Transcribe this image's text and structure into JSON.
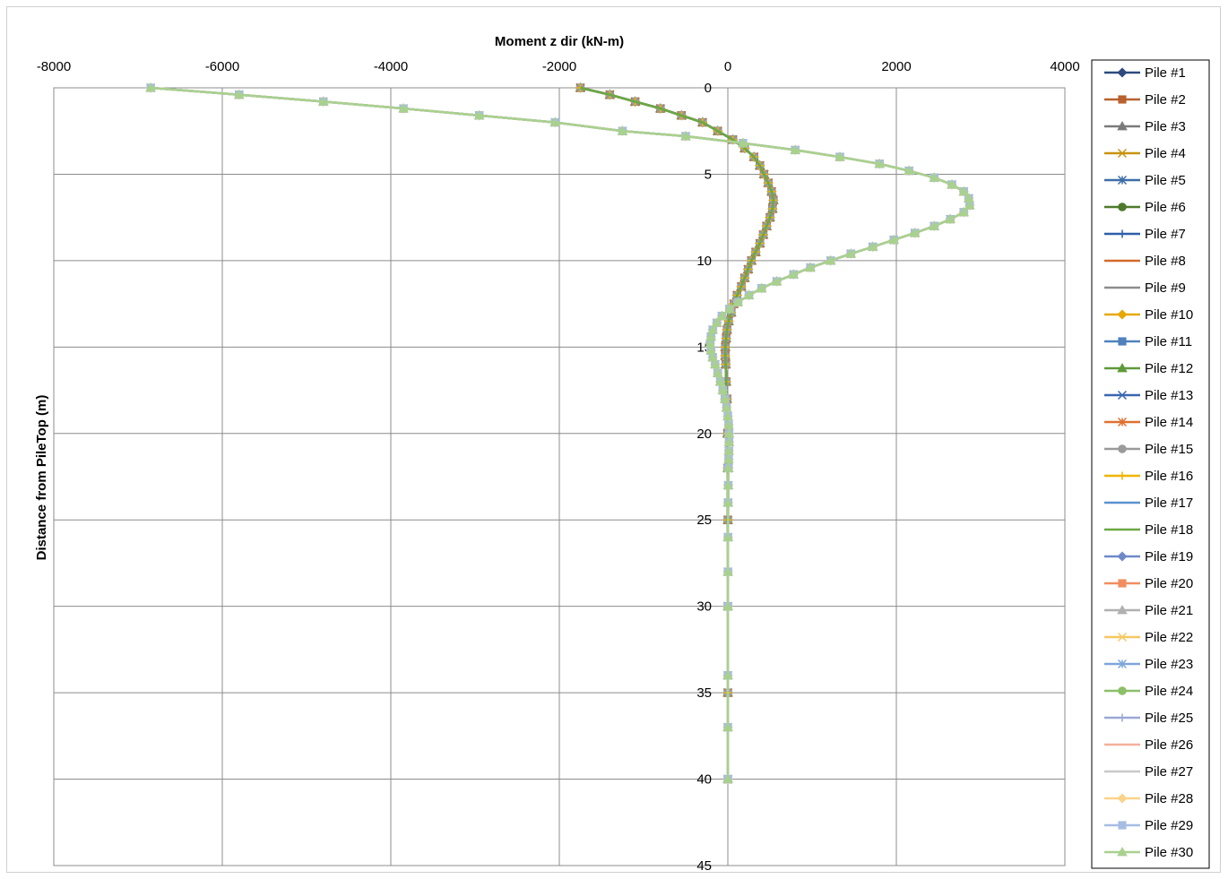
{
  "chart_data": {
    "type": "line",
    "title": "",
    "xlabel": "Moment z dir (kN-m)",
    "ylabel": "Distance from PileTop (m)",
    "xlim": [
      -8000,
      4000
    ],
    "ylim": [
      0,
      45
    ],
    "y_reversed": true,
    "x_ticks": [
      "-8000",
      "-6000",
      "-4000",
      "-2000",
      "0",
      "2000",
      "4000"
    ],
    "y_ticks": [
      "0",
      "5",
      "10",
      "15",
      "20",
      "25",
      "30",
      "35",
      "40",
      "45"
    ],
    "grid": true,
    "legend_position": "right",
    "profiles": {
      "A": [
        [
          -1750,
          0
        ],
        [
          -1400,
          0.4
        ],
        [
          -1100,
          0.8
        ],
        [
          -800,
          1.2
        ],
        [
          -550,
          1.6
        ],
        [
          -300,
          2.0
        ],
        [
          -120,
          2.5
        ],
        [
          60,
          3.0
        ],
        [
          200,
          3.5
        ],
        [
          310,
          4.0
        ],
        [
          380,
          4.5
        ],
        [
          430,
          5.0
        ],
        [
          480,
          5.5
        ],
        [
          520,
          6.0
        ],
        [
          540,
          6.5
        ],
        [
          530,
          7.0
        ],
        [
          500,
          7.5
        ],
        [
          460,
          8.0
        ],
        [
          420,
          8.5
        ],
        [
          380,
          9.0
        ],
        [
          330,
          9.5
        ],
        [
          280,
          10.0
        ],
        [
          240,
          10.5
        ],
        [
          200,
          11.0
        ],
        [
          160,
          11.5
        ],
        [
          110,
          12.0
        ],
        [
          70,
          12.5
        ],
        [
          40,
          13.0
        ],
        [
          10,
          13.5
        ],
        [
          -10,
          14.0
        ],
        [
          -20,
          14.5
        ],
        [
          -30,
          15.0
        ],
        [
          -30,
          15.5
        ],
        [
          -25,
          16.0
        ],
        [
          -20,
          17.0
        ],
        [
          -10,
          18.0
        ],
        [
          -5,
          20.0
        ],
        [
          0,
          22.0
        ],
        [
          0,
          25.0
        ],
        [
          0,
          30.0
        ],
        [
          0,
          35.0
        ],
        [
          0,
          40.0
        ]
      ],
      "B": [
        [
          -6850,
          0
        ],
        [
          -5800,
          0.4
        ],
        [
          -4800,
          0.8
        ],
        [
          -3850,
          1.2
        ],
        [
          -2950,
          1.6
        ],
        [
          -2050,
          2.0
        ],
        [
          -1250,
          2.5
        ],
        [
          -500,
          2.8
        ],
        [
          180,
          3.2
        ],
        [
          800,
          3.6
        ],
        [
          1330,
          4.0
        ],
        [
          1800,
          4.4
        ],
        [
          2150,
          4.8
        ],
        [
          2450,
          5.2
        ],
        [
          2660,
          5.6
        ],
        [
          2800,
          6.0
        ],
        [
          2860,
          6.4
        ],
        [
          2870,
          6.8
        ],
        [
          2800,
          7.2
        ],
        [
          2640,
          7.6
        ],
        [
          2450,
          8.0
        ],
        [
          2220,
          8.4
        ],
        [
          1970,
          8.8
        ],
        [
          1720,
          9.2
        ],
        [
          1460,
          9.6
        ],
        [
          1220,
          10.0
        ],
        [
          980,
          10.4
        ],
        [
          780,
          10.8
        ],
        [
          580,
          11.2
        ],
        [
          400,
          11.6
        ],
        [
          250,
          12.0
        ],
        [
          120,
          12.4
        ],
        [
          20,
          12.8
        ],
        [
          -70,
          13.2
        ],
        [
          -130,
          13.6
        ],
        [
          -180,
          14.0
        ],
        [
          -200,
          14.4
        ],
        [
          -210,
          14.8
        ],
        [
          -200,
          15.2
        ],
        [
          -180,
          15.6
        ],
        [
          -150,
          16.0
        ],
        [
          -120,
          16.5
        ],
        [
          -90,
          17.0
        ],
        [
          -60,
          17.5
        ],
        [
          -35,
          18.0
        ],
        [
          -15,
          18.5
        ],
        [
          0,
          19.0
        ],
        [
          10,
          19.5
        ],
        [
          15,
          20.0
        ],
        [
          15,
          20.5
        ],
        [
          12,
          21.0
        ],
        [
          10,
          21.5
        ],
        [
          8,
          22.0
        ],
        [
          5,
          23.0
        ],
        [
          3,
          24.0
        ],
        [
          2,
          26.0
        ],
        [
          1,
          28.0
        ],
        [
          0,
          30.0
        ],
        [
          0,
          34.0
        ],
        [
          0,
          37.0
        ],
        [
          0,
          40.0
        ]
      ]
    },
    "series": [
      {
        "name": "Pile #1",
        "color": "#2e4a7d",
        "marker": "diamond",
        "profile": "A"
      },
      {
        "name": "Pile #2",
        "color": "#b8612d",
        "marker": "square",
        "profile": "A"
      },
      {
        "name": "Pile #3",
        "color": "#7a7a7a",
        "marker": "triangle",
        "profile": "A"
      },
      {
        "name": "Pile #4",
        "color": "#c8930c",
        "marker": "x",
        "profile": "A"
      },
      {
        "name": "Pile #5",
        "color": "#3d6ea8",
        "marker": "star",
        "profile": "A"
      },
      {
        "name": "Pile #6",
        "color": "#4e7a2c",
        "marker": "circle",
        "profile": "A"
      },
      {
        "name": "Pile #7",
        "color": "#2e5ea8",
        "marker": "plus",
        "profile": "A"
      },
      {
        "name": "Pile #8",
        "color": "#d4692a",
        "marker": "none",
        "profile": "A"
      },
      {
        "name": "Pile #9",
        "color": "#8c8c8c",
        "marker": "none",
        "profile": "A"
      },
      {
        "name": "Pile #10",
        "color": "#e6a800",
        "marker": "diamond",
        "profile": "A"
      },
      {
        "name": "Pile #11",
        "color": "#4f81bd",
        "marker": "square",
        "profile": "A"
      },
      {
        "name": "Pile #12",
        "color": "#5e9a3a",
        "marker": "triangle",
        "profile": "A"
      },
      {
        "name": "Pile #13",
        "color": "#3a66b0",
        "marker": "x",
        "profile": "A"
      },
      {
        "name": "Pile #14",
        "color": "#e07030",
        "marker": "star",
        "profile": "A"
      },
      {
        "name": "Pile #15",
        "color": "#9a9a9a",
        "marker": "circle",
        "profile": "A"
      },
      {
        "name": "Pile #16",
        "color": "#f0b400",
        "marker": "plus",
        "profile": "A"
      },
      {
        "name": "Pile #17",
        "color": "#5b93cf",
        "marker": "none",
        "profile": "A"
      },
      {
        "name": "Pile #18",
        "color": "#6aa843",
        "marker": "none",
        "profile": "A"
      },
      {
        "name": "Pile #19",
        "color": "#6f88c8",
        "marker": "diamond",
        "profile": "B"
      },
      {
        "name": "Pile #20",
        "color": "#f08e5e",
        "marker": "square",
        "profile": "B"
      },
      {
        "name": "Pile #21",
        "color": "#b0b0b0",
        "marker": "triangle",
        "profile": "B"
      },
      {
        "name": "Pile #22",
        "color": "#f5c860",
        "marker": "x",
        "profile": "B"
      },
      {
        "name": "Pile #23",
        "color": "#7fa6da",
        "marker": "star",
        "profile": "B"
      },
      {
        "name": "Pile #24",
        "color": "#8cbf68",
        "marker": "circle",
        "profile": "B"
      },
      {
        "name": "Pile #25",
        "color": "#9aa8d4",
        "marker": "plus",
        "profile": "B"
      },
      {
        "name": "Pile #26",
        "color": "#f4b09a",
        "marker": "none",
        "profile": "B"
      },
      {
        "name": "Pile #27",
        "color": "#c8c8c8",
        "marker": "none",
        "profile": "B"
      },
      {
        "name": "Pile #28",
        "color": "#fad38a",
        "marker": "diamond",
        "profile": "B"
      },
      {
        "name": "Pile #29",
        "color": "#a6bde3",
        "marker": "square",
        "profile": "B"
      },
      {
        "name": "Pile #30",
        "color": "#a9d18e",
        "marker": "triangle",
        "profile": "B"
      }
    ]
  }
}
